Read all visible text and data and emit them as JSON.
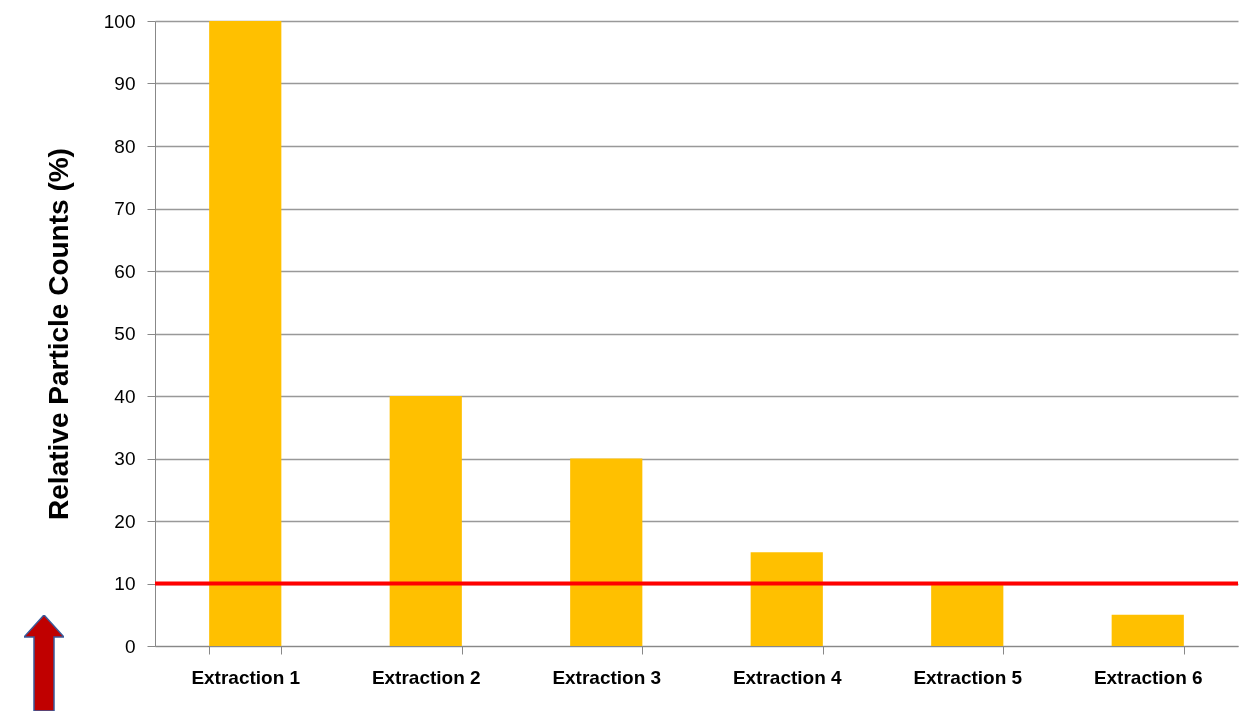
{
  "chart_data": {
    "type": "bar",
    "ylabel": "Relative Particle Counts (%)",
    "categories": [
      "Extraction 1",
      "Extraction 2",
      "Extraction 3",
      "Extraction 4",
      "Extraction  5",
      "Extraction 6"
    ],
    "values": [
      100,
      40,
      30,
      15,
      10,
      5
    ],
    "color": "#ffc000",
    "ylim": [
      0,
      100
    ],
    "yticks": [
      0,
      10,
      20,
      30,
      40,
      50,
      60,
      70,
      80,
      90,
      100
    ],
    "grid": "y",
    "ref_lines": [
      {
        "axis": "y",
        "value": 10,
        "color": "#ff0000"
      }
    ]
  }
}
